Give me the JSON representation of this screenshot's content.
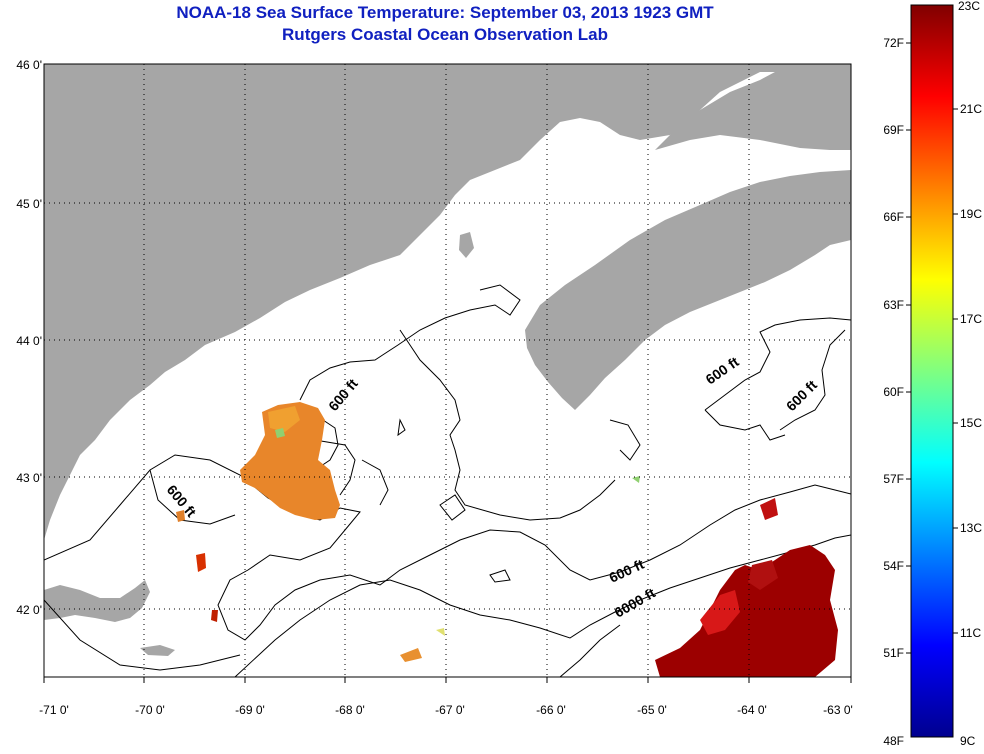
{
  "title": {
    "line1": "NOAA-18 Sea Surface Temperature:  September 03, 2013 1923 GMT",
    "line2": "Rutgers Coastal Ocean Observation Lab"
  },
  "map": {
    "lat_labels": [
      "46 0'",
      "45 0'",
      "44 0'",
      "43 0'",
      "42 0'"
    ],
    "lon_labels": [
      "-71 0'",
      "-70 0'",
      "-69 0'",
      "-68 0'",
      "-67 0'",
      "-66 0'",
      "-65 0'",
      "-64 0'",
      "-63 0'"
    ],
    "lat_range": [
      41.5,
      46.0
    ],
    "lon_range": [
      -71.0,
      -63.0
    ],
    "contour_labels": [
      "600 ft",
      "600 ft",
      "600 ft",
      "600 ft",
      "600 ft",
      "6000 ft"
    ]
  },
  "colorbar": {
    "fahrenheit_labels": [
      "72F",
      "69F",
      "66F",
      "63F",
      "60F",
      "57F",
      "54F",
      "51F",
      "48F"
    ],
    "celsius_labels": [
      "23C",
      "21C",
      "19C",
      "17C",
      "15C",
      "13C",
      "11C",
      "9C"
    ],
    "range_c": [
      9,
      23
    ],
    "colormap": "jet"
  },
  "colors": {
    "land": "#a6a6a6",
    "ocean_nodata": "#ffffff",
    "title": "#1020c0",
    "warm_water": "#9c0000",
    "moderate_water": "#e8862a"
  }
}
